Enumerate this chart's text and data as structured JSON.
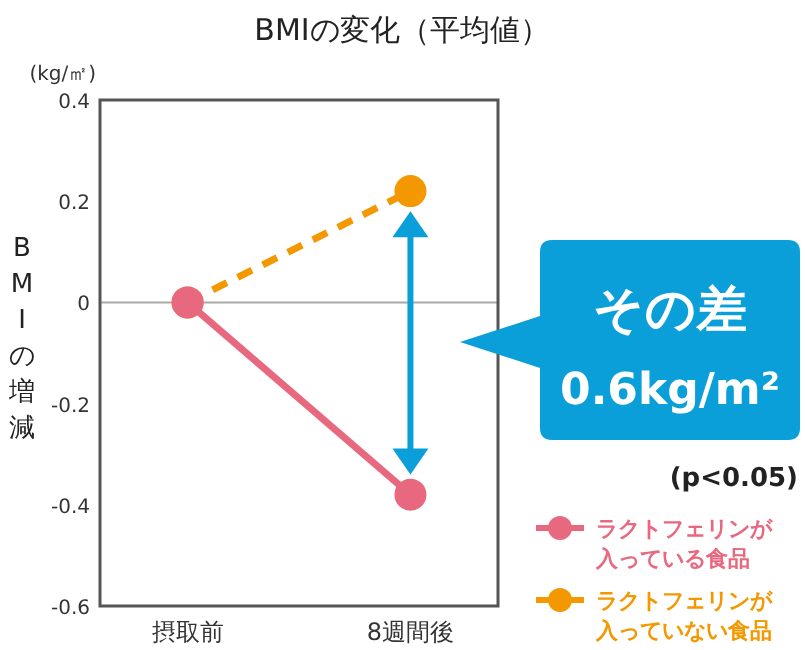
{
  "chart_data": {
    "type": "line",
    "title": "BMIの変化（平均値）",
    "ylabel": "BMIの増減",
    "categories": [
      "摂取前",
      "8週間後"
    ],
    "series": [
      {
        "name": "ラクトフェリンが入っている食品",
        "color": "#e8687f",
        "values": [
          0,
          -0.38
        ],
        "line_style": "solid"
      },
      {
        "name": "ラクトフェリンが入っていない食品",
        "color": "#f39800",
        "values": [
          0,
          0.22
        ],
        "line_style": "dashed"
      }
    ],
    "ylim": [
      -0.6,
      0.4
    ],
    "yticks": [
      0.4,
      0.2,
      0,
      -0.2,
      -0.4,
      -0.6
    ],
    "ref_lines": [
      {
        "axis": "y",
        "value": 0,
        "color": "#aaaaaa"
      }
    ],
    "annotations": [
      "(kg/㎡)",
      "その差",
      "0.6kg/m²",
      "(p<0.05)"
    ],
    "marker": "circle",
    "grid": false,
    "legend": "bottom right"
  }
}
